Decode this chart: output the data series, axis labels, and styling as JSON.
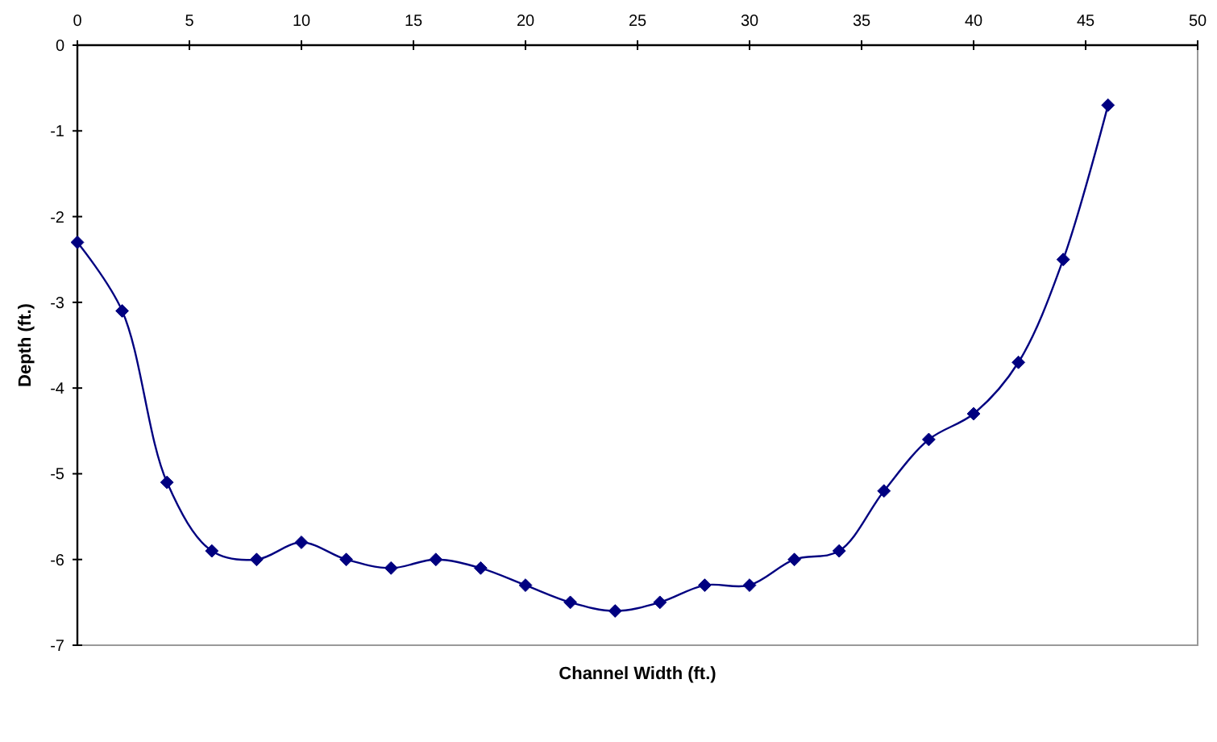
{
  "chart_data": {
    "type": "line",
    "xlabel": "Channel Width (ft.)",
    "ylabel": "Depth (ft.)",
    "x": [
      0,
      2,
      4,
      6,
      8,
      10,
      12,
      14,
      16,
      18,
      20,
      22,
      24,
      26,
      28,
      30,
      32,
      34,
      36,
      38,
      40,
      42,
      44,
      46
    ],
    "series": [
      {
        "color": "#000080",
        "values": [
          -2.3,
          -3.1,
          -5.1,
          -5.9,
          -6.0,
          -5.8,
          -6.0,
          -6.1,
          -6.0,
          -6.1,
          -6.3,
          -6.5,
          -6.6,
          -6.5,
          -6.3,
          -6.3,
          -6.0,
          -5.9,
          -5.2,
          -4.6,
          -4.3,
          -3.7,
          -2.5,
          -0.7
        ]
      }
    ],
    "xlim": [
      0,
      50
    ],
    "xticks": [
      0,
      5,
      10,
      15,
      20,
      25,
      30,
      35,
      40,
      45,
      50
    ],
    "ylim": [
      -7,
      0
    ],
    "yticks": [
      -7,
      -6,
      -5,
      -4,
      -3,
      -2,
      -1,
      0
    ],
    "marker": "diamond",
    "line_style": "solid"
  }
}
